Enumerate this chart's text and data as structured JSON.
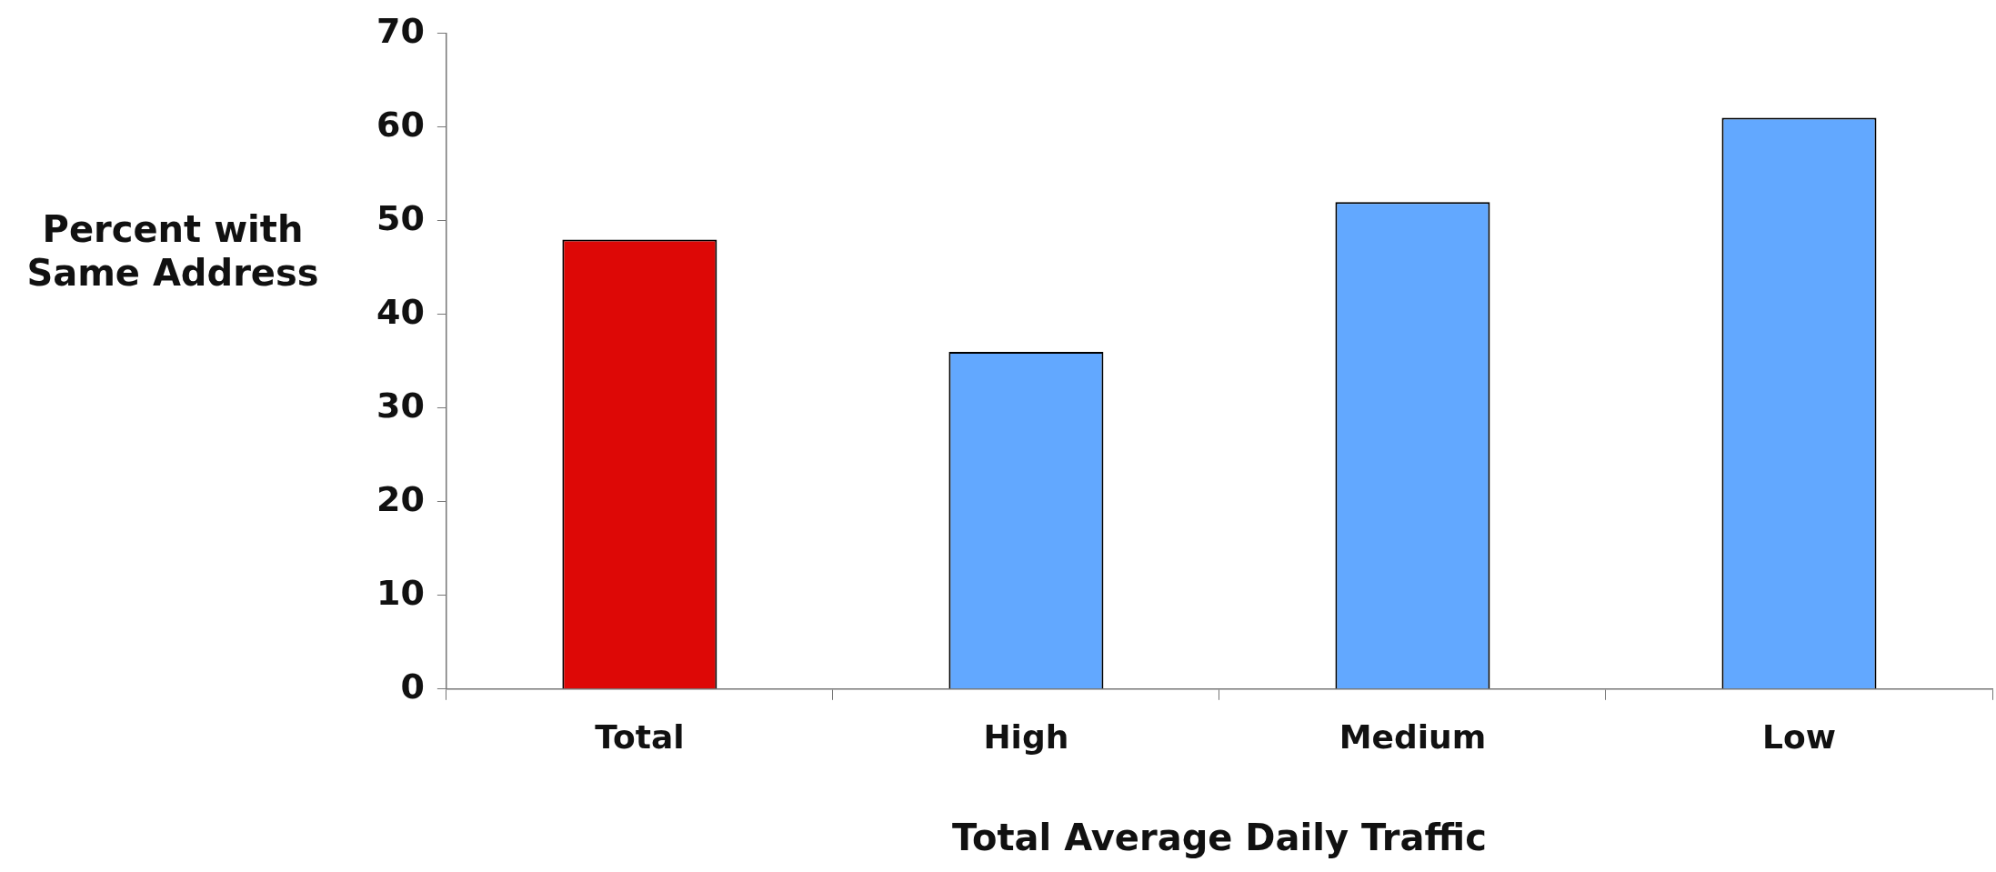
{
  "chart_data": {
    "type": "bar",
    "xlabel": "Total Average Daily Traffic",
    "ylabel": "Percent with Same Address",
    "categories": [
      "Total",
      "High",
      "Medium",
      "Low"
    ],
    "values": [
      48,
      36,
      52,
      61
    ],
    "colors": [
      "#dd0806",
      "#62a8ff",
      "#62a8ff",
      "#62a8ff"
    ],
    "ylim": [
      0,
      70
    ],
    "yticks": [
      0,
      10,
      20,
      30,
      40,
      50,
      60,
      70
    ],
    "grid": false,
    "legend": false
  }
}
